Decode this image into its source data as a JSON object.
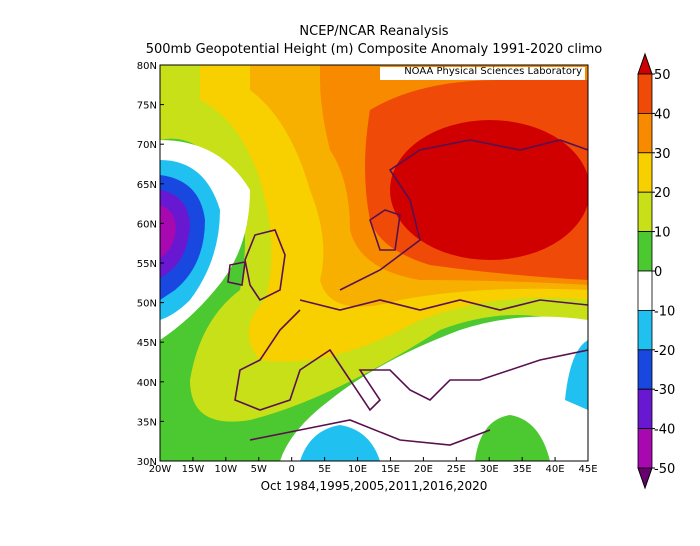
{
  "header": {
    "title": "NCEP/NCAR Reanalysis",
    "subtitle": "500mb Geopotential Height (m) Composite Anomaly 1991-2020 climo",
    "credit": "NOAA Physical Sciences Laboratory"
  },
  "map": {
    "lat_labels": [
      "80N",
      "75N",
      "70N",
      "65N",
      "60N",
      "55N",
      "50N",
      "45N",
      "40N",
      "35N",
      "30N"
    ],
    "lon_labels": [
      "20W",
      "15W",
      "10W",
      "5W",
      "0",
      "5E",
      "10E",
      "15E",
      "20E",
      "25E",
      "30E",
      "35E",
      "40E",
      "45E"
    ],
    "caption": "Oct 1984,1995,2005,2011,2016,2020"
  },
  "colorbar": {
    "ticks": [
      50,
      40,
      30,
      20,
      10,
      0,
      -10,
      -20,
      -30,
      -40,
      -50
    ],
    "colors": [
      "#d00000",
      "#f04a08",
      "#f88a00",
      "#f8d000",
      "#c8e018",
      "#4cc830",
      "#ffffff",
      "#20c0f0",
      "#1848e0",
      "#6818d0",
      "#a808b0",
      "#680070"
    ]
  }
}
